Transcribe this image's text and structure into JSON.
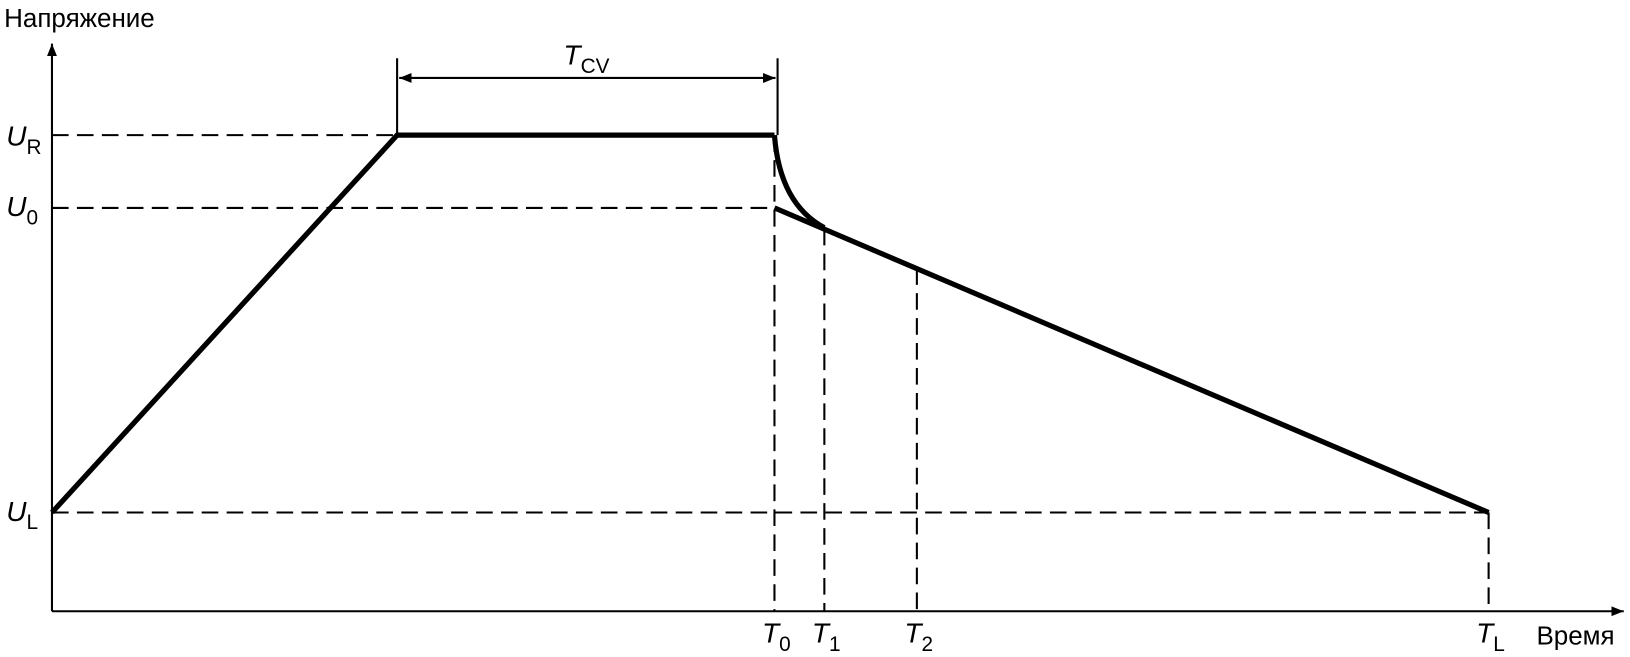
{
  "axes": {
    "y_label": "Напряжение",
    "x_label": "Время"
  },
  "voltage_levels": [
    {
      "symbol": "U",
      "subscript": "R"
    },
    {
      "symbol": "U",
      "subscript": "0"
    },
    {
      "symbol": "U",
      "subscript": "L"
    }
  ],
  "time_points": [
    {
      "symbol": "T",
      "subscript": "0"
    },
    {
      "symbol": "T",
      "subscript": "1"
    },
    {
      "symbol": "T",
      "subscript": "2"
    },
    {
      "symbol": "T",
      "subscript": "L"
    }
  ],
  "interval": {
    "symbol": "T",
    "subscript": "CV"
  }
}
